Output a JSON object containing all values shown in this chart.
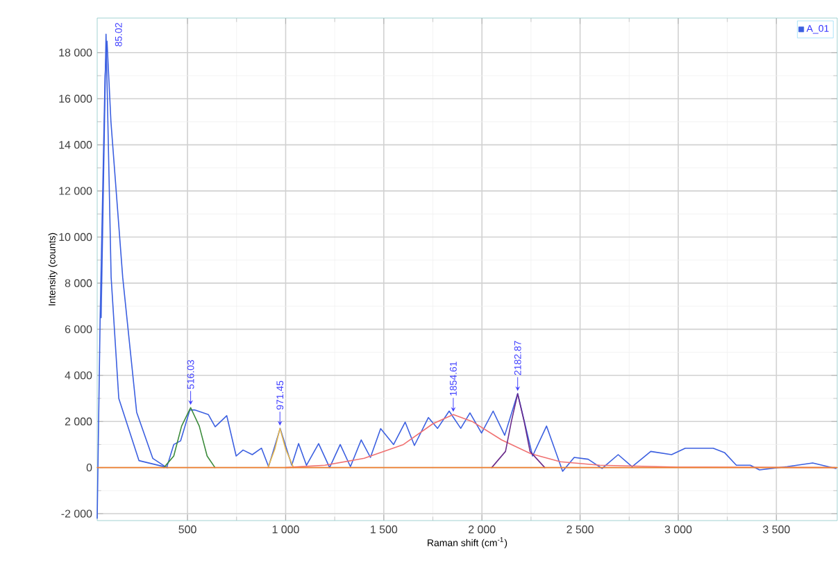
{
  "chart_data": {
    "type": "line",
    "xlabel": "Raman shift (cm$^{-1}$)",
    "ylabel": "Intensity (counts)",
    "xlim": [
      40,
      3810
    ],
    "ylim": [
      -2300,
      19500
    ],
    "xticks": [
      500,
      {
        "value": 1000,
        "label": "1 000"
      },
      {
        "value": 1500,
        "label": "1 500"
      },
      {
        "value": 2000,
        "label": "2 000"
      },
      {
        "value": 2500,
        "label": "2 500"
      },
      {
        "value": 3000,
        "label": "3 000"
      },
      {
        "value": 3500,
        "label": "3 500"
      }
    ],
    "yticks": [
      {
        "value": -2000,
        "label": "-2 000"
      },
      0,
      {
        "value": 2000,
        "label": "2 000"
      },
      {
        "value": 4000,
        "label": "4 000"
      },
      {
        "value": 6000,
        "label": "6 000"
      },
      {
        "value": 8000,
        "label": "8 000"
      },
      {
        "value": 10000,
        "label": "10 000"
      },
      {
        "value": 12000,
        "label": "12 000"
      },
      {
        "value": 14000,
        "label": "14 000"
      },
      {
        "value": 16000,
        "label": "16 000"
      },
      {
        "value": 18000,
        "label": "18 000"
      }
    ],
    "grid": true,
    "legend": "top right",
    "series": [
      {
        "name": "A_01",
        "color": "#3b5fe0",
        "x": [
          40,
          55,
          80,
          90,
          110,
          170,
          241,
          323,
          394,
          430,
          465,
          512,
          536,
          571,
          606,
          641,
          700,
          748,
          783,
          830,
          877,
          913,
          972,
          1031,
          1066,
          1106,
          1168,
          1224,
          1278,
          1330,
          1385,
          1432,
          1484,
          1550,
          1609,
          1656,
          1727,
          1774,
          1833,
          1892,
          1939,
          1998,
          2057,
          2116,
          2182,
          2258,
          2329,
          2411,
          2470,
          2541,
          2612,
          2694,
          2765,
          2860,
          2966,
          3036,
          3178,
          3237,
          3296,
          3367,
          3414,
          3556,
          3685,
          3803
        ],
        "values": [
          -2200,
          6500,
          17000,
          18500,
          15000,
          8250,
          2400,
          400,
          0,
          1000,
          1160,
          2500,
          2500,
          2400,
          2300,
          1770,
          2250,
          500,
          760,
          560,
          840,
          40,
          1700,
          100,
          1040,
          100,
          1040,
          0,
          1000,
          40,
          1200,
          440,
          1690,
          1000,
          1970,
          960,
          2170,
          1700,
          2450,
          1700,
          2370,
          1500,
          2450,
          1400,
          3210,
          500,
          1800,
          -160,
          440,
          360,
          -40,
          560,
          40,
          700,
          560,
          840,
          840,
          640,
          100,
          100,
          -100,
          40,
          200,
          -40
        ]
      },
      {
        "color": "#3b5fe0",
        "x": [
          60,
          85,
          111,
          150,
          253,
          400
        ],
        "values": [
          6500,
          18800,
          8250,
          3000,
          300,
          0
        ]
      },
      {
        "color": "#3a8a3a",
        "x": [
          380,
          430,
          470,
          516,
          560,
          600,
          640
        ],
        "values": [
          0,
          500,
          1800,
          2600,
          1800,
          500,
          0
        ]
      },
      {
        "color": "#e8b84a",
        "x": [
          910,
          945,
          971,
          1000,
          1040
        ],
        "values": [
          0,
          800,
          1700,
          800,
          0
        ]
      },
      {
        "color": "#f07070",
        "x": [
          1000,
          1200,
          1400,
          1600,
          1750,
          1854,
          1950,
          2100,
          2250,
          2400,
          2600,
          3000,
          3800
        ],
        "values": [
          0,
          100,
          400,
          1000,
          1900,
          2300,
          2000,
          1200,
          600,
          250,
          100,
          20,
          0
        ]
      },
      {
        "color": "#6a2a8a",
        "x": [
          2050,
          2120,
          2150,
          2182,
          2215,
          2245,
          2320
        ],
        "values": [
          0,
          700,
          2000,
          3200,
          2000,
          700,
          0
        ]
      },
      {
        "color": "#f08030",
        "x": [
          40,
          3810
        ],
        "values": [
          0,
          0
        ]
      }
    ],
    "annotations": [
      {
        "text": "85.02",
        "x": 85,
        "y": 18800
      },
      {
        "text": "516.03",
        "x": 516,
        "y": 2600
      },
      {
        "text": "971.45",
        "x": 971,
        "y": 1700
      },
      {
        "text": "1854.61",
        "x": 1854,
        "y": 2300
      },
      {
        "text": "2182.87",
        "x": 2182,
        "y": 3200
      }
    ]
  }
}
